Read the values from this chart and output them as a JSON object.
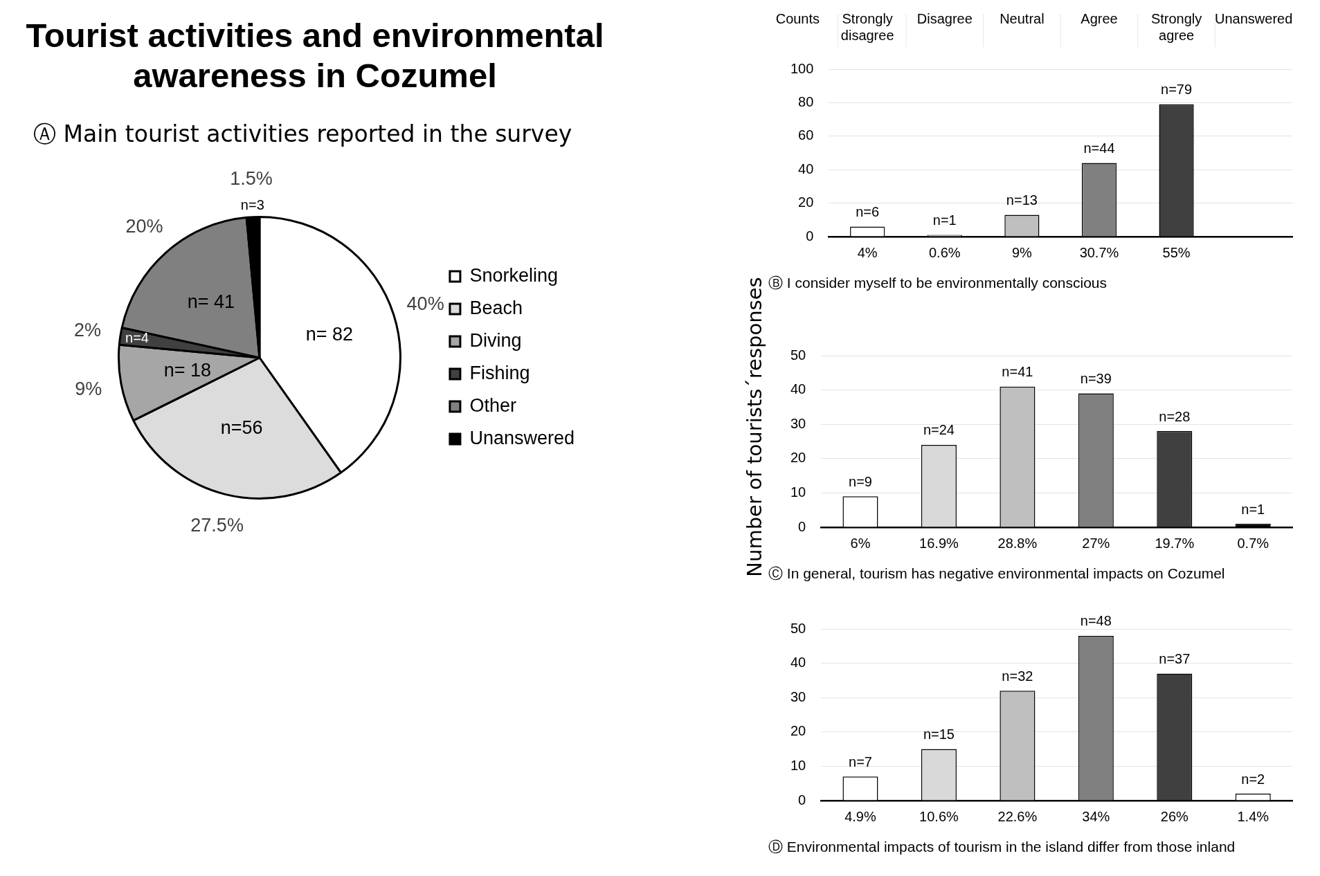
{
  "chart_data": [
    {
      "type": "pie",
      "title": "Tourist activities and environmental awareness in Cozumel",
      "subtitle": "Ⓐ Main tourist activities reported in the survey",
      "categories": [
        "Snorkeling",
        "Beach",
        "Diving",
        "Fishing",
        "Other",
        "Unanswered"
      ],
      "values": [
        82,
        56,
        18,
        4,
        41,
        3
      ],
      "colors": [
        "#ffffff",
        "#dcdcdc",
        "#a6a6a6",
        "#404040",
        "#808080",
        "#000000"
      ],
      "value_labels": [
        "n= 82",
        "n=56",
        "n= 18",
        "n=4",
        "n= 41",
        "n=3"
      ],
      "annotations": [
        "40%",
        "27.5%",
        "9%",
        "2%",
        "20%",
        "1.5%"
      ],
      "legend": "right"
    },
    {
      "type": "bar",
      "title": "Ⓑ I consider myself to be environmentally conscious",
      "annotations": [
        "Counts",
        "Strongly disagree",
        "Disagree",
        "Neutral",
        "Agree",
        "Strongly agree",
        "Unanswered"
      ],
      "categories": [
        "4%",
        "0.6%",
        "9%",
        "30.7%",
        "55%",
        null
      ],
      "values": [
        6,
        1,
        13,
        44,
        79,
        null
      ],
      "colors": [
        "#ffffff",
        "#d9d9d9",
        "#bfbfbf",
        "#808080",
        "#404040",
        "#000000"
      ],
      "value_labels": [
        "n=6",
        "n=1",
        "n=13",
        "n=44",
        "n=79",
        null
      ],
      "ylim": [
        0,
        100
      ],
      "yticks": [
        0,
        20,
        40,
        60,
        80,
        100
      ],
      "grid": "y"
    },
    {
      "type": "bar",
      "title": "Ⓒ In general, tourism has negative environmental impacts on Cozumel",
      "ylabel": "Number of tourists´responses",
      "categories": [
        "6%",
        "16.9%",
        "28.8%",
        "27%",
        "19.7%",
        "0.7%"
      ],
      "values": [
        9,
        24,
        41,
        39,
        28,
        1
      ],
      "colors": [
        "#ffffff",
        "#d9d9d9",
        "#bfbfbf",
        "#808080",
        "#404040",
        "#000000"
      ],
      "value_labels": [
        "n=9",
        "n=24",
        "n=41",
        "n=39",
        "n=28",
        "n=1"
      ],
      "ylim": [
        0,
        50
      ],
      "yticks": [
        0,
        10,
        20,
        30,
        40,
        50
      ],
      "grid": "y"
    },
    {
      "type": "bar",
      "title": "Ⓓ Environmental impacts of tourism in the island differ from those inland",
      "categories": [
        "4.9%",
        "10.6%",
        "22.6%",
        "34%",
        "26%",
        "1.4%"
      ],
      "values": [
        7,
        15,
        32,
        48,
        37,
        2
      ],
      "colors": [
        "#ffffff",
        "#d9d9d9",
        "#bfbfbf",
        "#808080",
        "#404040",
        "#ffffff"
      ],
      "value_labels": [
        "n=7",
        "n=15",
        "n=32",
        "n=48",
        "n=37",
        "n=2"
      ],
      "ylim": [
        0,
        50
      ],
      "yticks": [
        0,
        10,
        20,
        30,
        40,
        50
      ],
      "grid": "y"
    }
  ]
}
